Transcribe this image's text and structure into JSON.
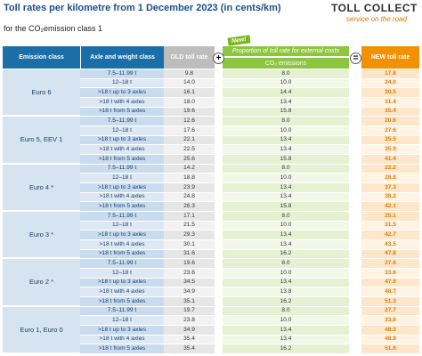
{
  "header": {
    "title": "Toll rates per kilometre from 1 December 2023 (in cents/km)",
    "subtitle": "for the CO₂emission class 1",
    "logo_title": "TOLL COLLECT",
    "logo_tagline": "service on the road"
  },
  "table": {
    "columns": {
      "emission": "Emission class",
      "axle": "Axle and weight class",
      "old": "OLD toll rate",
      "plus": "+",
      "badge": "New!",
      "proportion": "Proportion of toll rate for external costs",
      "co2": "CO₂ emissions",
      "equals": "=",
      "new_rate": "NEW toll rate"
    },
    "groups": [
      {
        "class": "Euro 6",
        "rows": [
          [
            "7.5–11.99 t",
            "9.8",
            "8.0",
            "17.8"
          ],
          [
            "12–18 t",
            "14.0",
            "10.0",
            "24.0"
          ],
          [
            ">18 t up to 3 axles",
            "16.1",
            "14.4",
            "30.5"
          ],
          [
            ">18 t with 4 axles",
            "18.0",
            "13.4",
            "31.4"
          ],
          [
            ">18 t from 5 axles",
            "19.6",
            "15.8",
            "35.4"
          ]
        ]
      },
      {
        "class": "Euro 5, EEV 1",
        "rows": [
          [
            "7.5–11.99 t",
            "12.6",
            "8.0",
            "20.6"
          ],
          [
            "12–18 t",
            "17.6",
            "10.0",
            "27.6"
          ],
          [
            ">18 t up to 3 axles",
            "22.1",
            "13.4",
            "35.5"
          ],
          [
            ">18 t with 4 axles",
            "22.5",
            "13.4",
            "35.9"
          ],
          [
            ">18 t from 5 axles",
            "25.6",
            "15.8",
            "41.4"
          ]
        ]
      },
      {
        "class": "Euro 4 *",
        "rows": [
          [
            "7.5–11.99 t",
            "14.2",
            "8.0",
            "22.2"
          ],
          [
            "12–18 t",
            "18.8",
            "10.0",
            "28.8"
          ],
          [
            ">18 t up to 3 axles",
            "23.9",
            "13.4",
            "37.3"
          ],
          [
            ">18 t with 4 axles",
            "24.8",
            "13.4",
            "38.2"
          ],
          [
            ">18 t from 5 axles",
            "26.3",
            "15.8",
            "42.1"
          ]
        ]
      },
      {
        "class": "Euro 3 *",
        "rows": [
          [
            "7.5–11.99 t",
            "17.1",
            "8.0",
            "25.1"
          ],
          [
            "12–18 t",
            "21.5",
            "10.0",
            "31.5"
          ],
          [
            ">18 t up to 3 axles",
            "29.3",
            "13.4",
            "42.7"
          ],
          [
            ">18 t with 4 axles",
            "30.1",
            "13.4",
            "43.5"
          ],
          [
            ">18 t from 5 axles",
            "31.6",
            "16.2",
            "47.8"
          ]
        ]
      },
      {
        "class": "Euro 2 *",
        "rows": [
          [
            "7.5–11.99 t",
            "19.6",
            "8.0",
            "27.6"
          ],
          [
            "12–18 t",
            "23.6",
            "10.0",
            "33.6"
          ],
          [
            ">18 t up to 3 axles",
            "34.5",
            "13.4",
            "47.9"
          ],
          [
            ">18 t with 4 axles",
            "34.9",
            "13.8",
            "48.7"
          ],
          [
            ">18 t from 5 axles",
            "35.1",
            "16.2",
            "51.3"
          ]
        ]
      },
      {
        "class": "Euro 1, Euro 0",
        "rows": [
          [
            "7.5–11.99 t",
            "19.7",
            "8.0",
            "27.7"
          ],
          [
            "12–18 t",
            "23.8",
            "10.0",
            "33.8"
          ],
          [
            ">18 t up to 3 axles",
            "34.9",
            "13.4",
            "48.3"
          ],
          [
            ">18 t with 4 axles",
            "35.4",
            "13.4",
            "48.8"
          ],
          [
            ">18 t from 5 axles",
            "35.4",
            "16.2",
            "51.6"
          ]
        ]
      }
    ]
  }
}
